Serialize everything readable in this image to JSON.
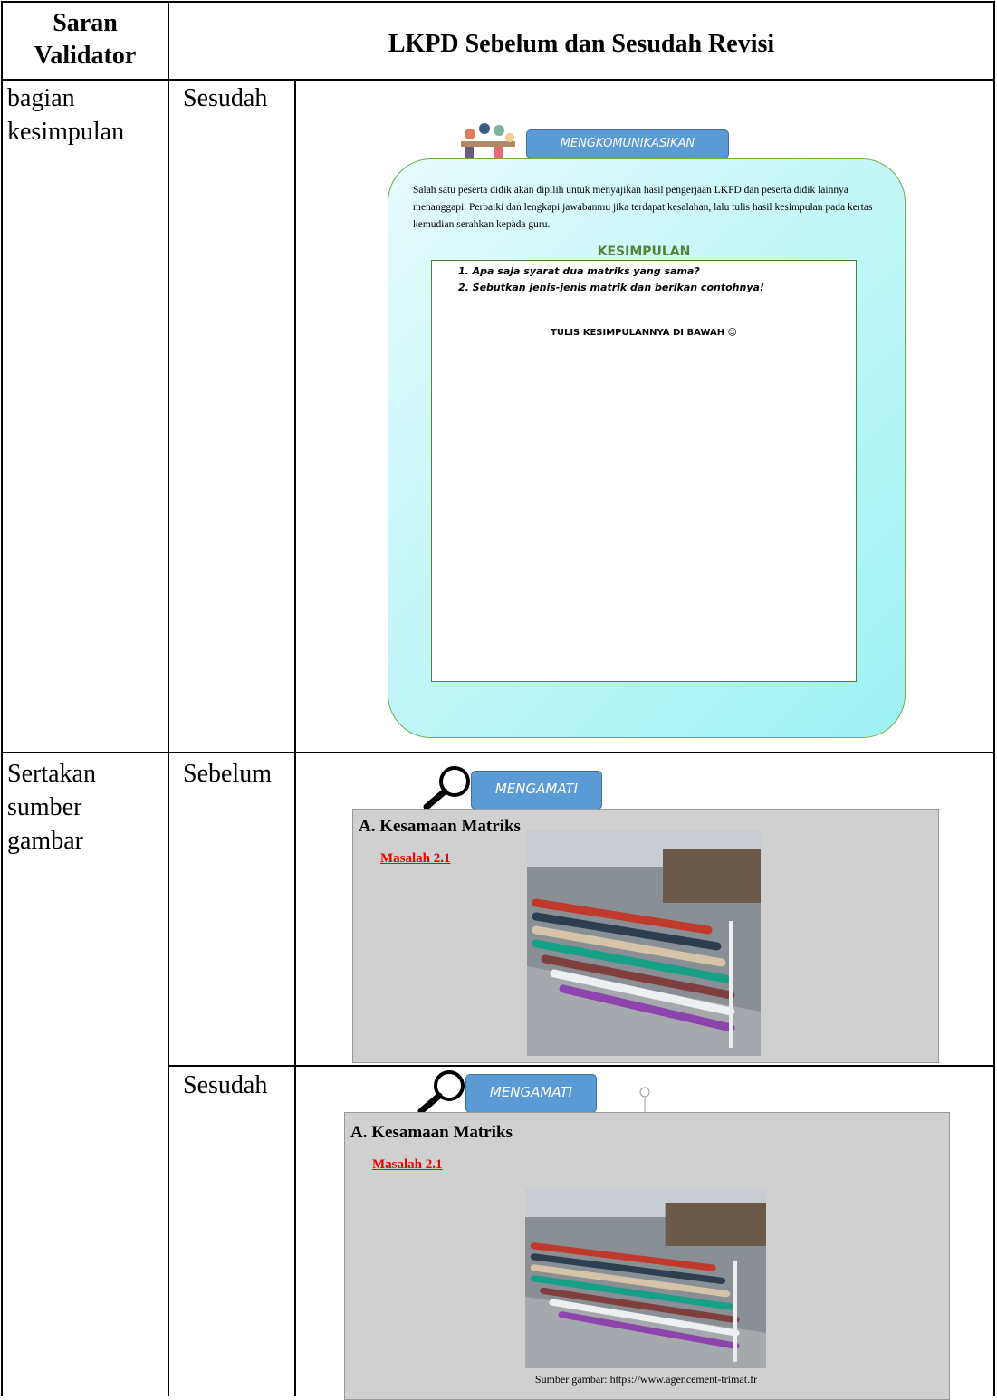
{
  "table": {
    "header": [
      "Saran Validator",
      "LKPD Sebelum dan Sesudah Revisi"
    ],
    "rows": [
      {
        "suggestion": "bagian kesimpulan",
        "stage": "Sesudah",
        "content": {
          "button": "MENGKOMUNIKASIKAN",
          "instruction": "Salah satu peserta didik akan dipilih untuk menyajikan hasil pengerjaan LKPD dan peserta didik lainnya menanggapi. Perbaiki dan lengkapi jawabanmu jika terdapat kesalahan, lalu tulis hasil kesimpulan pada kertas kemudian serahkan kepada guru.",
          "heading": "KESIMPULAN",
          "questions": [
            "1.  Apa saja syarat dua matriks yang sama?",
            "2.  Sebutkan jenis-jenis matrik dan berikan contohnya!"
          ],
          "note": "TULIS KESIMPULANNYA DI BAWAH ☺"
        }
      },
      {
        "suggestion": "Sertakan sumber gambar",
        "versions": [
          {
            "stage": "Sebelum",
            "content": {
              "button": "MENGAMATI",
              "section": "A. Kesamaan Matriks",
              "problem": "Masalah 2.1"
            }
          },
          {
            "stage": "Sesudah",
            "content": {
              "button": "MENGAMATI",
              "section": "A. Kesamaan Matriks",
              "problem": "Masalah 2.1",
              "caption": "Sumber gambar: https://www.agencement-trimat.fr"
            }
          }
        ]
      }
    ]
  }
}
